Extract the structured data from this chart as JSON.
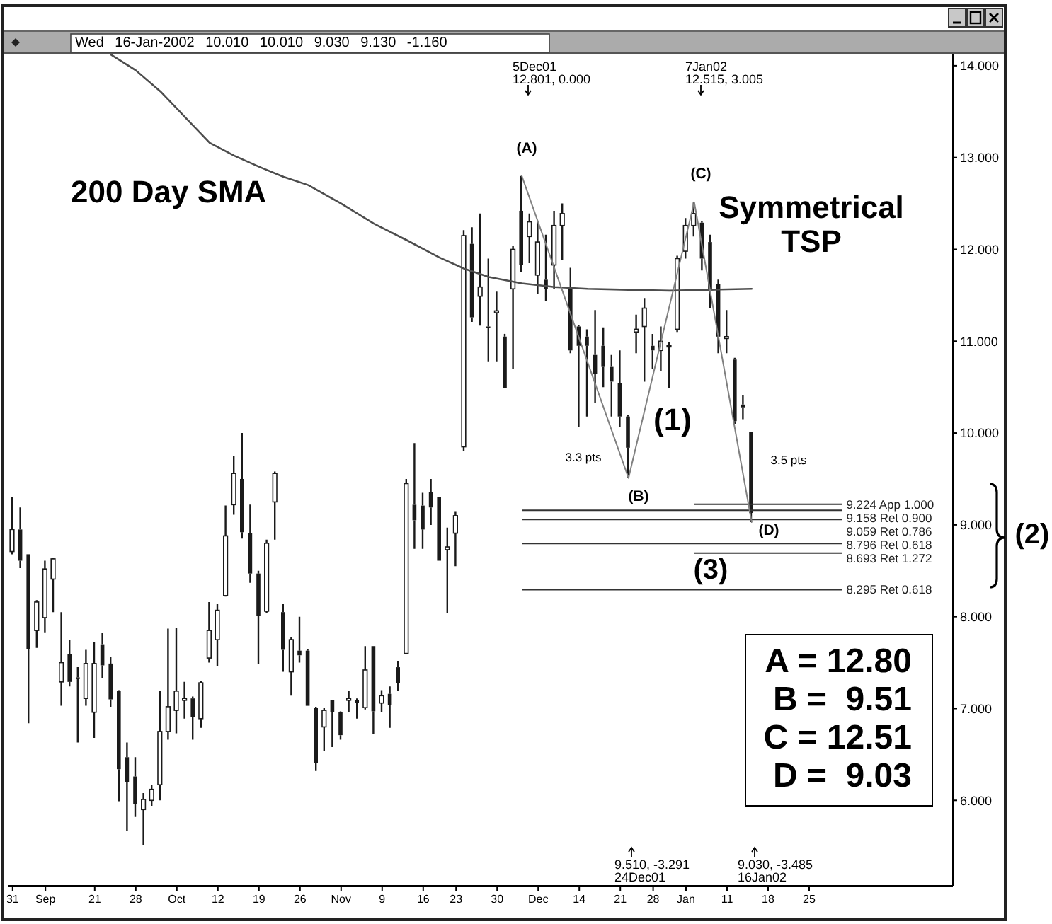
{
  "chart_data": {
    "type": "candlestick",
    "title": "Wed 16-Jan-2002 10.010 10.010 9.030 9.130 -1.160",
    "color": "#1a1a1a",
    "categories": [
      "31",
      null,
      null,
      null,
      "Sep",
      null,
      null,
      null,
      null,
      null,
      "21",
      null,
      null,
      null,
      null,
      "28",
      null,
      null,
      null,
      null,
      "Oct",
      null,
      null,
      null,
      null,
      "12",
      null,
      null,
      null,
      null,
      "19",
      null,
      null,
      null,
      null,
      "26",
      null,
      null,
      null,
      null,
      "Nov",
      null,
      null,
      null,
      null,
      "9",
      null,
      null,
      null,
      null,
      "16",
      null,
      null,
      null,
      "23",
      null,
      null,
      null,
      null,
      "30",
      null,
      null,
      null,
      null,
      "Dec",
      null,
      null,
      null,
      null,
      "14",
      null,
      null,
      null,
      null,
      "21",
      null,
      null,
      null,
      "28",
      null,
      null,
      null,
      "Jan",
      null,
      null,
      null,
      null,
      "11",
      null,
      null,
      null,
      null,
      "18",
      null,
      null,
      null,
      null,
      "25",
      null,
      null,
      null,
      null,
      null,
      null,
      null,
      null,
      null,
      null,
      null,
      null,
      null,
      null,
      null,
      null,
      null
    ],
    "ohlc": [
      [
        8.71,
        9.3,
        8.68,
        8.95
      ],
      [
        8.95,
        9.19,
        8.53,
        8.61
      ],
      [
        8.68,
        8.68,
        6.84,
        7.65
      ],
      [
        7.85,
        8.18,
        7.66,
        8.16
      ],
      [
        7.99,
        8.61,
        7.83,
        8.52
      ],
      [
        8.41,
        8.64,
        8.05,
        8.63
      ],
      [
        7.29,
        8.05,
        7.03,
        7.5
      ],
      [
        7.59,
        7.75,
        7.24,
        7.29
      ],
      [
        7.34,
        7.45,
        6.63,
        7.32
      ],
      [
        7.11,
        7.64,
        7.03,
        7.49
      ],
      [
        6.96,
        7.72,
        6.68,
        7.49
      ],
      [
        7.7,
        7.82,
        7.33,
        7.47
      ],
      [
        7.49,
        7.56,
        7.02,
        7.1
      ],
      [
        7.19,
        7.2,
        5.99,
        6.34
      ],
      [
        6.47,
        6.63,
        5.67,
        6.2
      ],
      [
        6.26,
        6.47,
        5.82,
        5.96
      ],
      [
        5.9,
        6.08,
        5.51,
        6.01
      ],
      [
        6.0,
        6.17,
        5.94,
        6.12
      ],
      [
        6.17,
        7.19,
        6.0,
        6.75
      ],
      [
        6.75,
        7.87,
        6.66,
        7.02
      ],
      [
        6.98,
        7.88,
        6.73,
        7.19
      ],
      [
        7.09,
        7.29,
        6.89,
        7.11
      ],
      [
        7.11,
        7.13,
        6.66,
        6.91
      ],
      [
        6.89,
        7.3,
        6.79,
        7.28
      ],
      [
        7.55,
        8.16,
        7.5,
        7.85
      ],
      [
        7.75,
        8.14,
        7.46,
        8.07
      ],
      [
        8.23,
        9.21,
        8.22,
        8.88
      ],
      [
        9.22,
        9.75,
        9.11,
        9.56
      ],
      [
        9.5,
        10.0,
        8.85,
        8.92
      ],
      [
        8.91,
        9.22,
        8.37,
        8.47
      ],
      [
        8.47,
        8.5,
        7.49,
        8.01
      ],
      [
        8.06,
        8.84,
        8.04,
        8.8
      ],
      [
        9.25,
        9.58,
        8.84,
        9.56
      ],
      [
        8.05,
        8.14,
        7.4,
        7.64
      ],
      [
        7.4,
        7.78,
        7.14,
        7.75
      ],
      [
        7.63,
        8.0,
        7.5,
        7.58
      ],
      [
        7.63,
        7.65,
        7.03,
        7.03
      ],
      [
        7.01,
        7.02,
        6.32,
        6.41
      ],
      [
        6.8,
        7.01,
        6.54,
        6.98
      ],
      [
        7.09,
        7.09,
        6.58,
        6.96
      ],
      [
        6.96,
        6.97,
        6.66,
        6.71
      ],
      [
        7.09,
        7.19,
        6.96,
        7.11
      ],
      [
        7.09,
        7.11,
        6.89,
        7.06
      ],
      [
        7.01,
        7.68,
        6.99,
        7.42
      ],
      [
        7.68,
        7.68,
        6.72,
        6.97
      ],
      [
        7.06,
        7.2,
        6.96,
        7.14
      ],
      [
        7.16,
        7.24,
        6.79,
        7.04
      ],
      [
        7.45,
        7.52,
        7.19,
        7.28
      ],
      [
        7.6,
        9.5,
        7.6,
        9.45
      ],
      [
        9.22,
        9.89,
        8.74,
        9.05
      ],
      [
        9.21,
        9.35,
        8.74,
        8.95
      ],
      [
        9.36,
        9.5,
        9.0,
        9.19
      ],
      [
        9.3,
        9.3,
        8.61,
        8.61
      ],
      [
        8.73,
        8.97,
        8.04,
        8.76
      ],
      [
        8.91,
        9.15,
        8.55,
        9.1
      ],
      [
        9.85,
        12.21,
        9.8,
        12.15
      ],
      [
        12.06,
        12.24,
        11.21,
        11.26
      ],
      [
        11.49,
        12.39,
        11.17,
        11.59
      ],
      [
        11.16,
        11.9,
        10.78,
        11.15
      ],
      [
        11.31,
        11.54,
        10.78,
        11.33
      ],
      [
        11.05,
        11.08,
        10.49,
        10.49
      ],
      [
        11.57,
        12.04,
        10.7,
        12.0
      ],
      [
        12.42,
        12.8,
        11.75,
        11.83
      ],
      [
        12.14,
        12.39,
        11.85,
        12.3
      ],
      [
        11.72,
        12.3,
        11.51,
        12.08
      ],
      [
        11.67,
        12.16,
        11.44,
        11.57
      ],
      [
        11.83,
        12.42,
        11.57,
        12.26
      ],
      [
        12.26,
        12.5,
        11.88,
        12.39
      ],
      [
        11.59,
        11.8,
        10.87,
        10.9
      ],
      [
        11.16,
        11.18,
        10.07,
        10.95
      ],
      [
        11.05,
        11.13,
        10.18,
        10.95
      ],
      [
        10.85,
        11.34,
        10.33,
        10.64
      ],
      [
        10.95,
        11.15,
        10.5,
        10.72
      ],
      [
        10.72,
        10.85,
        10.18,
        10.56
      ],
      [
        10.54,
        10.9,
        10.07,
        10.18
      ],
      [
        10.18,
        10.2,
        9.51,
        9.84
      ],
      [
        11.1,
        11.29,
        10.87,
        11.13
      ],
      [
        11.16,
        11.47,
        10.56,
        11.36
      ],
      [
        10.95,
        11.08,
        10.7,
        10.9
      ],
      [
        10.9,
        11.16,
        10.67,
        11.0
      ],
      [
        10.95,
        10.99,
        10.49,
        10.95
      ],
      [
        11.13,
        11.93,
        11.1,
        11.9
      ],
      [
        11.98,
        12.34,
        11.9,
        12.26
      ],
      [
        12.26,
        12.51,
        12.14,
        12.39
      ],
      [
        12.29,
        12.31,
        11.77,
        11.9
      ],
      [
        12.08,
        12.16,
        11.36,
        11.57
      ],
      [
        11.62,
        11.67,
        10.87,
        11.05
      ],
      [
        11.03,
        11.34,
        10.87,
        11.05
      ],
      [
        10.8,
        10.82,
        10.1,
        10.13
      ],
      [
        10.31,
        10.41,
        10.15,
        10.28
      ],
      [
        10.01,
        10.01,
        9.03,
        9.13
      ],
      null,
      null,
      null,
      null,
      null,
      null,
      null,
      null,
      null,
      null,
      null,
      null,
      null,
      null,
      null,
      null,
      null,
      null,
      null,
      null,
      null,
      null,
      null,
      null
    ],
    "series": [
      {
        "type": "line",
        "name": "200 Day SMA",
        "color": "#4d4d4d",
        "values": [
          null,
          null,
          null,
          null,
          null,
          null,
          null,
          null,
          null,
          null,
          null,
          null,
          14.12,
          null,
          null,
          13.95,
          null,
          null,
          13.72,
          null,
          null,
          13.44,
          null,
          null,
          13.16,
          null,
          null,
          13.02,
          null,
          null,
          12.9,
          null,
          null,
          12.79,
          null,
          null,
          12.7,
          null,
          null,
          null,
          12.5,
          null,
          null,
          null,
          12.28,
          null,
          null,
          null,
          12.1,
          null,
          null,
          null,
          11.91,
          null,
          null,
          11.79,
          null,
          null,
          11.7,
          null,
          null,
          null,
          11.63,
          null,
          null,
          null,
          11.59,
          null,
          null,
          null,
          11.57,
          null,
          null,
          null,
          null,
          11.56,
          null,
          null,
          null,
          null,
          11.55,
          null,
          null,
          null,
          null,
          11.56,
          null,
          null,
          null,
          null,
          11.57,
          null,
          null,
          null,
          null,
          null,
          null,
          null,
          null,
          null,
          null,
          null,
          null,
          null,
          null,
          null,
          null,
          null,
          null,
          null,
          null,
          null,
          null,
          null,
          null
        ]
      },
      {
        "type": "line",
        "name": "Symmetrical TSP",
        "color": "#808080",
        "values": [
          null,
          null,
          null,
          null,
          null,
          null,
          null,
          null,
          null,
          null,
          null,
          null,
          null,
          null,
          null,
          null,
          null,
          null,
          null,
          null,
          null,
          null,
          null,
          null,
          null,
          null,
          null,
          null,
          null,
          null,
          null,
          null,
          null,
          null,
          null,
          null,
          null,
          null,
          null,
          null,
          null,
          null,
          null,
          null,
          null,
          null,
          null,
          null,
          null,
          null,
          null,
          null,
          null,
          null,
          null,
          null,
          null,
          null,
          null,
          null,
          null,
          null,
          12.801,
          null,
          null,
          null,
          null,
          null,
          null,
          null,
          null,
          null,
          null,
          null,
          null,
          9.51,
          null,
          null,
          null,
          null,
          null,
          null,
          null,
          12.515,
          null,
          null,
          null,
          null,
          null,
          null,
          9.03,
          null,
          null,
          null,
          null,
          null,
          null,
          null,
          null,
          null,
          null,
          null,
          null,
          null,
          null,
          null,
          null,
          null,
          null,
          null,
          null,
          null,
          null,
          null,
          null
        ]
      }
    ],
    "ylim": [
      5.07,
      14.13
    ],
    "yticks": [
      {
        "value": 6,
        "label": "6.000"
      },
      {
        "value": 7,
        "label": "7.000"
      },
      {
        "value": 8,
        "label": "8.000"
      },
      {
        "value": 9,
        "label": "9.000"
      },
      {
        "value": 10,
        "label": "10.000"
      },
      {
        "value": 11,
        "label": "11.000"
      },
      {
        "value": 12,
        "label": "12.000"
      },
      {
        "value": 13,
        "label": "13.000"
      },
      {
        "value": 14,
        "label": "14.000"
      }
    ],
    "ref_lines": [
      {
        "axis": "y",
        "value": 9.224,
        "label": "9.224 App 1.000",
        "color": "#333333"
      },
      {
        "axis": "y",
        "value": 9.158,
        "label": "9.158 Ret 0.900",
        "color": "#333333"
      },
      {
        "axis": "y",
        "value": 9.059,
        "label": "9.059 Ret 0.786",
        "color": "#333333"
      },
      {
        "axis": "y",
        "value": 8.796,
        "label": "8.796 Ret 0.618",
        "color": "#333333"
      },
      {
        "axis": "y",
        "value": 8.693,
        "label": "8.693 Ret 1.272",
        "color": "#333333"
      },
      {
        "axis": "y",
        "value": 8.295,
        "label": "8.295 Ret 0.618",
        "color": "#333333"
      }
    ],
    "annotations": [
      "(A)",
      "(B)",
      "(C)",
      "(D)",
      "5Dec01",
      "12.801, 0.000",
      "7Jan02",
      "12.515, 3.005",
      "9.510, -3.291",
      "24Dec01",
      "9.030, -3.485",
      "16Jan02",
      "3.3 pts",
      "3.5 pts",
      "(1)",
      "(2)",
      "(3)",
      "A = 12.80",
      "B =  9.51",
      "C = 12.51",
      "D =  9.03"
    ]
  }
}
